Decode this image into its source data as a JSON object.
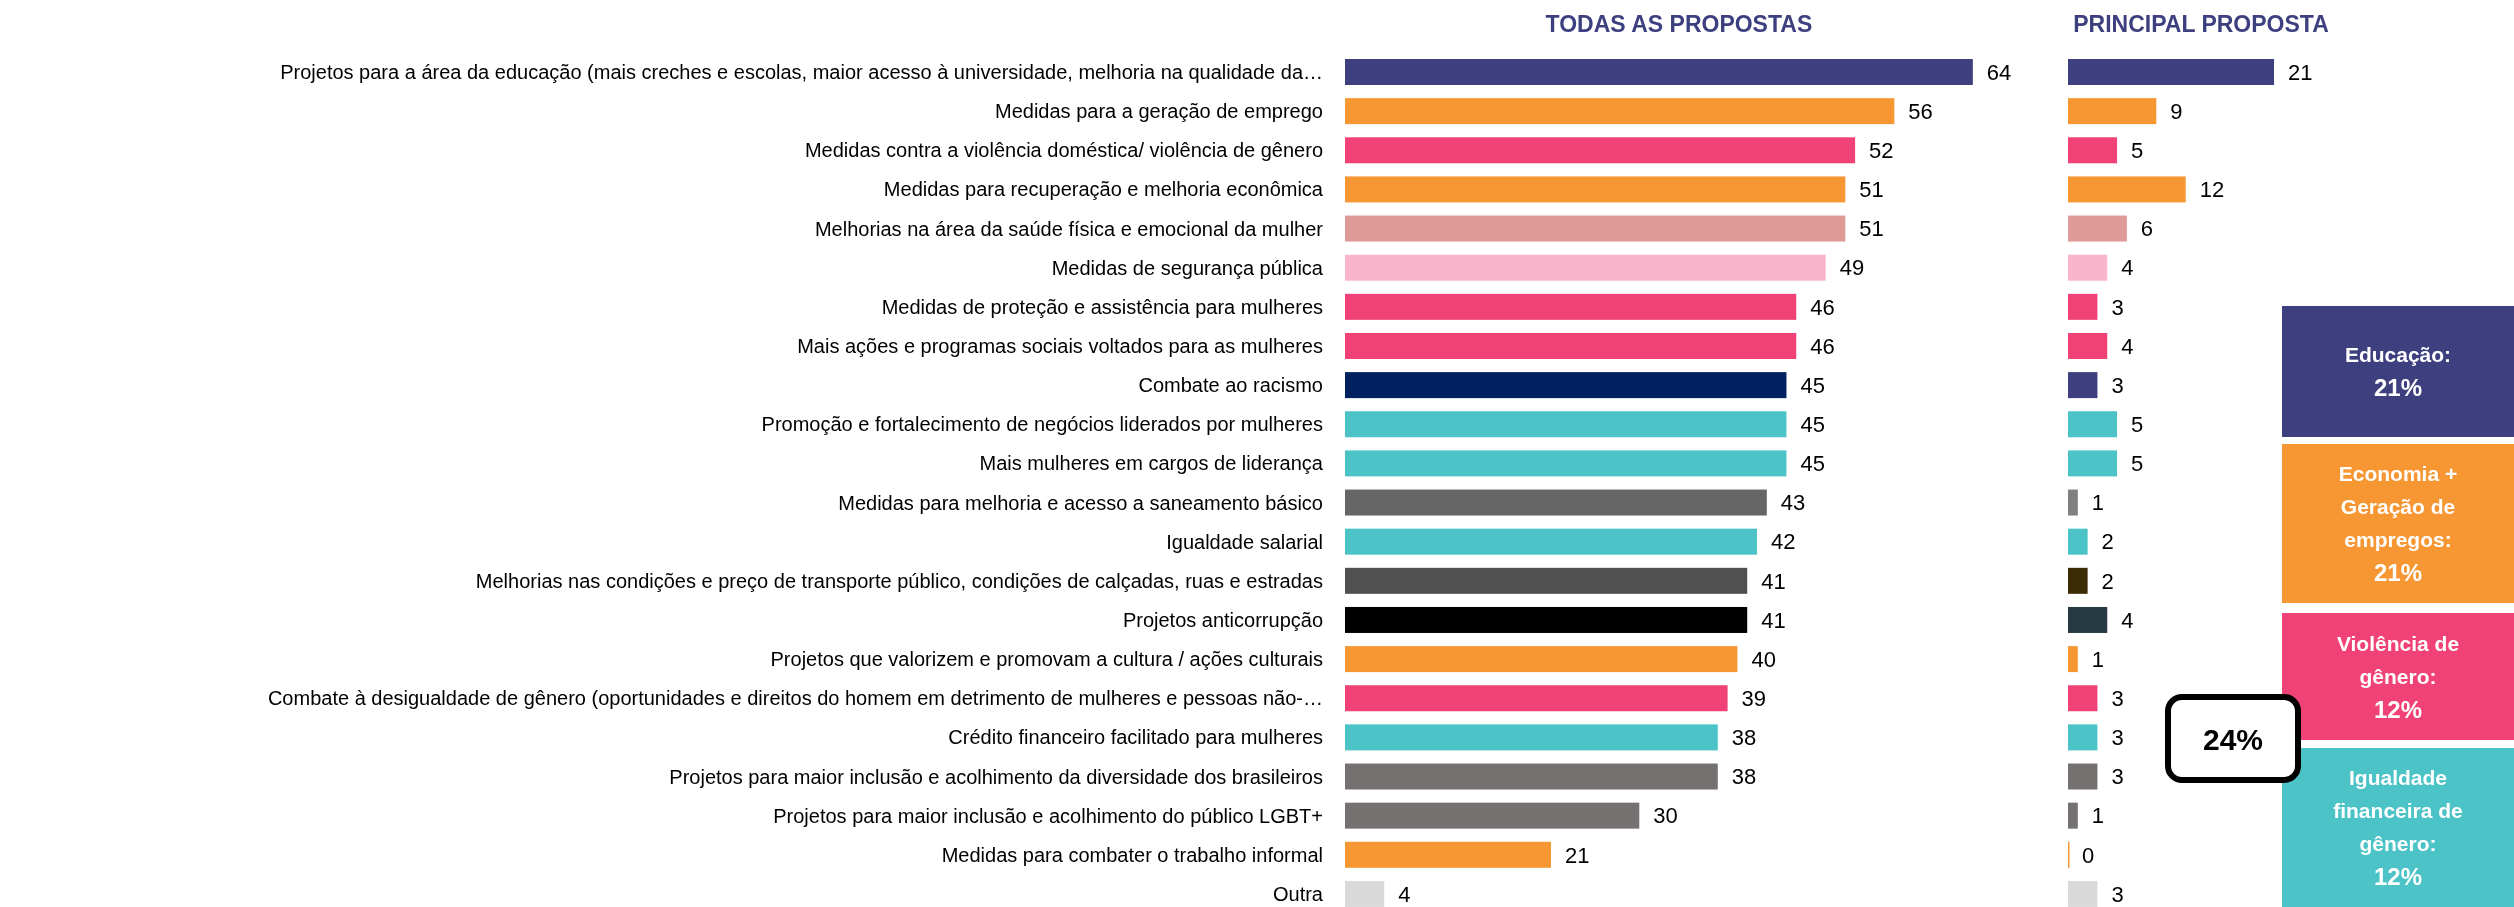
{
  "chart_data": [
    {
      "type": "bar",
      "orientation": "horizontal",
      "title": "TODAS AS PROPOSTAS",
      "data_labels": true,
      "categories": [
        "Projetos para a área da educação (mais creches e escolas, maior acesso à universidade, melhoria na qualidade da…",
        "Medidas para a geração de emprego",
        "Medidas contra a violência doméstica/ violência de gênero",
        "Medidas para recuperação e melhoria econômica",
        "Melhorias na área da saúde física e emocional da mulher",
        "Medidas de segurança pública",
        "Medidas de proteção e assistência para mulheres",
        "Mais ações e programas sociais voltados para as mulheres",
        "Combate ao racismo",
        "Promoção e fortalecimento de negócios liderados por mulheres",
        "Mais mulheres em cargos de liderança",
        "Medidas para melhoria e acesso a saneamento básico",
        "Igualdade salarial",
        "Melhorias nas condições e preço de transporte público, condições de calçadas, ruas e estradas",
        "Projetos anticorrupção",
        "Projetos que valorizem e promovam a cultura / ações culturais",
        "Combate à desigualdade de gênero (oportunidades e direitos do homem em detrimento de mulheres e pessoas não-…",
        "Crédito financeiro facilitado para mulheres",
        "Projetos para maior inclusão e acolhimento da diversidade dos brasileiros",
        "Projetos para maior inclusão e acolhimento do público LGBT+",
        "Medidas para combater o trabalho informal",
        "Outra"
      ],
      "values": [
        64,
        56,
        52,
        51,
        51,
        49,
        46,
        46,
        45,
        45,
        45,
        43,
        42,
        41,
        41,
        40,
        39,
        38,
        38,
        30,
        21,
        4
      ],
      "colors": [
        "#3d3f7f",
        "#f79733",
        "#f04276",
        "#f79733",
        "#dd9a97",
        "#f8b5cb",
        "#f04276",
        "#f04276",
        "#00205f",
        "#4bc3c7",
        "#4bc3c7",
        "#666666",
        "#4bc3c7",
        "#505050",
        "#000000",
        "#f79733",
        "#f04276",
        "#4bc3c7",
        "#767171",
        "#767171",
        "#f79733",
        "#d9d9d9"
      ]
    },
    {
      "type": "bar",
      "orientation": "horizontal",
      "title": "PRINCIPAL PROPOSTA",
      "data_labels": true,
      "categories": [
        null,
        null,
        null,
        null,
        null,
        null,
        null,
        null,
        null,
        null,
        null,
        null,
        null,
        null,
        null,
        null,
        null,
        null,
        null,
        null,
        null,
        null
      ],
      "values": [
        21,
        9,
        5,
        12,
        6,
        4,
        3,
        4,
        3,
        5,
        5,
        1,
        2,
        2,
        4,
        1,
        3,
        3,
        3,
        1,
        0,
        3
      ],
      "colors": [
        "#3d3f7f",
        "#f79733",
        "#f04276",
        "#f79733",
        "#dd9a97",
        "#f8b5cb",
        "#f04276",
        "#f04276",
        "#3d3f7f",
        "#4bc3c7",
        "#4bc3c7",
        "#808080",
        "#4bc3c7",
        "#3d2b05",
        "#243a40",
        "#f79733",
        "#f04276",
        "#4bc3c7",
        "#767171",
        "#767171",
        "#f79733",
        "#d9d9d9"
      ]
    },
    {
      "type": "other",
      "annotations": [
        "Educação:\n21%",
        "Economia +\nGeração de\nempregos:\n21%",
        "Violência de\ngênero:\n12%",
        "Igualdade\nfinanceira de\ngênero:\n12%",
        "24%"
      ],
      "colors": [
        "#3d3f7f",
        "#f79733",
        "#f04276",
        "#4bc3c7"
      ]
    }
  ]
}
